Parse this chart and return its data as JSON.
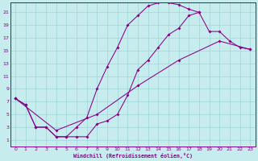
{
  "xlabel": "Windchill (Refroidissement éolien,°C)",
  "bg_color": "#c6ecee",
  "grid_color": "#a0d4d8",
  "line_color": "#880088",
  "xlim": [
    -0.5,
    23.5
  ],
  "ylim": [
    0,
    22.5
  ],
  "xticks": [
    0,
    1,
    2,
    3,
    4,
    5,
    6,
    7,
    8,
    9,
    10,
    11,
    12,
    13,
    14,
    15,
    16,
    17,
    18,
    19,
    20,
    21,
    22,
    23
  ],
  "yticks": [
    1,
    3,
    5,
    7,
    9,
    11,
    13,
    15,
    17,
    19,
    21
  ],
  "curve_upper_x": [
    0,
    1,
    2,
    3,
    4,
    5,
    6,
    7,
    8,
    9,
    10,
    11,
    12,
    13,
    14,
    15,
    16,
    17,
    18
  ],
  "curve_upper_y": [
    7.5,
    6.5,
    3.0,
    3.0,
    1.5,
    1.5,
    3.0,
    4.5,
    9.0,
    12.5,
    15.5,
    19.0,
    20.5,
    22.0,
    22.5,
    22.5,
    22.2,
    21.5,
    21.0
  ],
  "curve_lower_x": [
    0,
    1,
    2,
    3,
    4,
    5,
    6,
    7,
    8,
    9,
    10,
    11,
    12,
    13,
    14,
    15,
    16,
    17,
    18,
    19,
    20,
    21,
    22,
    23
  ],
  "curve_lower_y": [
    7.5,
    6.5,
    3.0,
    3.0,
    1.5,
    1.5,
    1.5,
    1.5,
    3.5,
    4.0,
    5.0,
    8.0,
    12.0,
    13.5,
    15.5,
    17.5,
    18.5,
    20.5,
    21.0,
    18.0,
    18.0,
    16.5,
    15.5,
    15.2
  ],
  "curve_diag_x": [
    0,
    4,
    8,
    12,
    16,
    20,
    23
  ],
  "curve_diag_y": [
    7.5,
    2.5,
    5.0,
    9.5,
    13.5,
    16.5,
    15.2
  ]
}
